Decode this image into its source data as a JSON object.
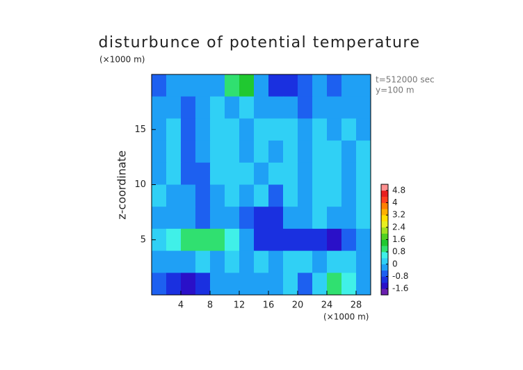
{
  "chart_data": {
    "type": "contour",
    "title": "disturbunce of potential temperature",
    "y_unit": "(×1000 m)",
    "x_unit": "(×1000 m)",
    "ylabel": "z-coordinate",
    "annotations": [
      "t=512000 sec",
      "y=100 m"
    ],
    "xlim": [
      0,
      30
    ],
    "ylim": [
      0,
      20
    ],
    "xticks": [
      4,
      8,
      12,
      16,
      20,
      24,
      28
    ],
    "yticks": [
      5,
      10,
      15
    ],
    "x": [
      1,
      3,
      5,
      7,
      9,
      11,
      13,
      15,
      17,
      19,
      21,
      23,
      25,
      27,
      29
    ],
    "y": [
      19,
      17,
      15,
      13,
      11,
      9,
      7,
      5,
      3,
      1
    ],
    "z": [
      [
        -0.6,
        -0.4,
        -0.2,
        -0.4,
        -0.2,
        1.0,
        1.4,
        -0.4,
        -1.0,
        -1.2,
        -0.8,
        -0.4,
        -0.6,
        -0.4,
        -0.2
      ],
      [
        -0.4,
        -0.2,
        -0.8,
        -0.4,
        0.0,
        -0.2,
        0.0,
        -0.2,
        -0.4,
        -0.4,
        -0.6,
        -0.4,
        -0.2,
        -0.4,
        -0.2
      ],
      [
        -0.2,
        0.0,
        -0.8,
        -0.2,
        0.2,
        0.0,
        -0.4,
        0.0,
        0.2,
        0.0,
        -0.4,
        0.0,
        -0.2,
        0.0,
        -0.2
      ],
      [
        -0.2,
        0.2,
        -0.8,
        -0.4,
        0.0,
        0.2,
        -0.2,
        0.2,
        -0.2,
        0.2,
        -0.2,
        0.2,
        0.0,
        -0.2,
        0.0
      ],
      [
        -0.2,
        0.0,
        -0.6,
        -0.6,
        0.0,
        0.2,
        0.0,
        -0.2,
        0.0,
        0.2,
        -0.2,
        0.0,
        0.2,
        -0.2,
        0.0
      ],
      [
        0.0,
        -0.2,
        -0.4,
        -0.8,
        -0.2,
        0.0,
        -0.2,
        0.0,
        -0.8,
        0.0,
        -0.4,
        0.2,
        0.0,
        -0.2,
        0.0
      ],
      [
        -0.2,
        -0.4,
        -0.4,
        -0.6,
        -0.4,
        -0.2,
        -0.6,
        -1.0,
        -1.2,
        -0.4,
        -0.4,
        0.0,
        -0.2,
        -0.2,
        0.0
      ],
      [
        0.2,
        0.6,
        0.8,
        1.0,
        0.8,
        0.4,
        -0.4,
        -1.2,
        -1.0,
        -1.0,
        -1.2,
        -1.0,
        -1.4,
        -0.8,
        -0.2
      ],
      [
        -0.4,
        -0.2,
        -0.4,
        0.0,
        -0.2,
        0.2,
        -0.2,
        0.0,
        -0.4,
        0.0,
        0.2,
        -0.4,
        0.0,
        0.2,
        -0.2
      ],
      [
        -0.6,
        -1.2,
        -1.4,
        -1.0,
        -0.4,
        -0.2,
        -0.4,
        -0.2,
        -0.4,
        0.0,
        -0.6,
        0.0,
        0.8,
        0.4,
        -0.4
      ]
    ],
    "clim": [
      -2,
      5.2
    ],
    "cticks": [
      -1.6,
      -0.8,
      0,
      0.8,
      1.6,
      2.4,
      3.2,
      4,
      4.8
    ],
    "colors": [
      "#6a1fb0",
      "#2a10c8",
      "#1a30e0",
      "#1d60f0",
      "#1fa0f5",
      "#30d0f5",
      "#40f0e8",
      "#30e070",
      "#20c830",
      "#50d020",
      "#a0e020",
      "#e8f020",
      "#ffe000",
      "#ffb000",
      "#ff8000",
      "#ff4020",
      "#e82020",
      "#ff9090"
    ]
  }
}
